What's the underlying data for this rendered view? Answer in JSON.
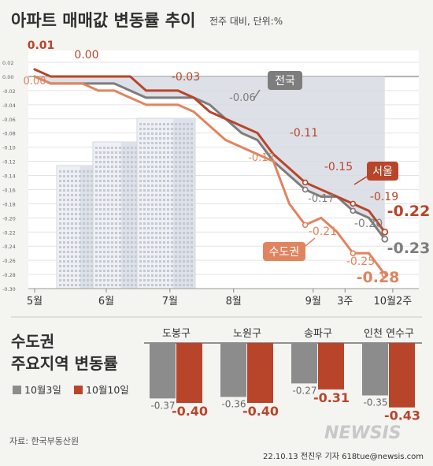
{
  "header": {
    "title": "아파트 매매값 변동률 추이",
    "unit_note": "전주 대비, 단위:%"
  },
  "chart_data": [
    {
      "type": "line",
      "title": "아파트 매매값 변동률 추이",
      "y_ticks": [
        "0.02",
        "0.00",
        "-0.02",
        "-0.04",
        "-0.06",
        "-0.08",
        "-0.10",
        "-0.12",
        "-0.14",
        "-0.16",
        "-0.18",
        "-0.20",
        "-0.22",
        "-0.24",
        "-0.26",
        "-0.28",
        "-0.30"
      ],
      "ylim": [
        -0.3,
        0.02
      ],
      "x_ticks": [
        {
          "label": "5월",
          "x": 0
        },
        {
          "label": "6월",
          "x": 4.5
        },
        {
          "label": "7월",
          "x": 8.5
        },
        {
          "label": "8월",
          "x": 12.5
        },
        {
          "label": "9월",
          "x": 17.5
        },
        {
          "label": "3주",
          "x": 19.5
        },
        {
          "label": "10월2주",
          "x": 22.5
        }
      ],
      "xlim": [
        0,
        23
      ],
      "grid": true,
      "series": [
        {
          "name": "전국",
          "color": "#7d7d7d",
          "x": [
            0,
            1,
            2,
            3,
            4,
            5,
            6,
            7,
            8,
            9,
            10,
            11,
            12,
            13,
            14,
            15,
            16,
            17,
            18,
            19,
            20,
            21,
            22
          ],
          "values": [
            0.0,
            -0.01,
            -0.01,
            -0.01,
            -0.01,
            -0.01,
            -0.02,
            -0.03,
            -0.03,
            -0.03,
            -0.03,
            -0.04,
            -0.06,
            -0.08,
            -0.09,
            -0.12,
            -0.14,
            -0.16,
            -0.17,
            -0.17,
            -0.19,
            -0.2,
            -0.23
          ]
        },
        {
          "name": "서울",
          "color": "#b8452a",
          "x": [
            0,
            1,
            2,
            3,
            4,
            5,
            6,
            7,
            8,
            9,
            10,
            11,
            12,
            13,
            14,
            15,
            16,
            17,
            18,
            19,
            20,
            21,
            22
          ],
          "values": [
            0.01,
            0.0,
            0.0,
            0.0,
            0.0,
            0.0,
            0.0,
            -0.02,
            -0.02,
            -0.02,
            -0.03,
            -0.05,
            -0.06,
            -0.07,
            -0.08,
            -0.11,
            -0.13,
            -0.15,
            -0.16,
            -0.17,
            -0.18,
            -0.19,
            -0.22
          ]
        },
        {
          "name": "수도권",
          "color": "#e0845f",
          "x": [
            0,
            1,
            2,
            3,
            4,
            5,
            6,
            7,
            8,
            9,
            10,
            11,
            12,
            13,
            14,
            15,
            16,
            17,
            18,
            19,
            20,
            21,
            22
          ],
          "values": [
            0.0,
            -0.01,
            -0.01,
            -0.01,
            -0.02,
            -0.02,
            -0.03,
            -0.04,
            -0.04,
            -0.04,
            -0.05,
            -0.07,
            -0.09,
            -0.1,
            -0.11,
            -0.12,
            -0.18,
            -0.21,
            -0.2,
            -0.22,
            -0.25,
            -0.25,
            -0.28
          ]
        }
      ],
      "labels": [
        {
          "text": "0.01",
          "color": "#b8452a"
        },
        {
          "text": "0.00",
          "color": "#e0845f"
        },
        {
          "text": "0.00",
          "color": "#b8452a"
        },
        {
          "text": "-0.03",
          "color": "#b8452a"
        },
        {
          "text": "-0.06",
          "color": "#7d7d7d"
        },
        {
          "text": "-0.11",
          "color": "#b8452a"
        },
        {
          "text": "-0.12",
          "color": "#e0845f"
        },
        {
          "text": "-0.15",
          "color": "#b8452a"
        },
        {
          "text": "-0.17",
          "color": "#7d7d7d"
        },
        {
          "text": "-0.21",
          "color": "#e0845f"
        },
        {
          "text": "-0.19",
          "color": "#b8452a"
        },
        {
          "text": "-0.20",
          "color": "#7d7d7d"
        },
        {
          "text": "-0.25",
          "color": "#e0845f"
        },
        {
          "text": "-0.22",
          "color": "#b8452a"
        },
        {
          "text": "-0.23",
          "color": "#7d7d7d"
        },
        {
          "text": "-0.28",
          "color": "#e0845f"
        }
      ],
      "callouts": [
        "전국",
        "서울",
        "수도권"
      ]
    },
    {
      "type": "bar",
      "title": "수도권 주요지역 변동률",
      "categories": [
        "도봉구",
        "노원구",
        "송파구",
        "인천 연수구"
      ],
      "series": [
        {
          "name": "10월3일",
          "color": "#8c8c8c",
          "values": [
            -0.37,
            -0.36,
            -0.27,
            -0.35
          ]
        },
        {
          "name": "10월10일",
          "color": "#b8452a",
          "values": [
            -0.4,
            -0.4,
            -0.31,
            -0.43
          ]
        }
      ],
      "value_labels": [
        [
          "-0.37",
          "-0.40"
        ],
        [
          "-0.36",
          "-0.40"
        ],
        [
          "-0.27",
          "-0.31"
        ],
        [
          "-0.35",
          "-0.43"
        ]
      ],
      "legend": [
        "10월3일",
        "10월10일"
      ]
    }
  ],
  "footer": {
    "source": "자료: 한국부동산원",
    "logo": "NEWSIS",
    "credit": "22.10.13 전진우 기자 618tue@newsis.com"
  }
}
